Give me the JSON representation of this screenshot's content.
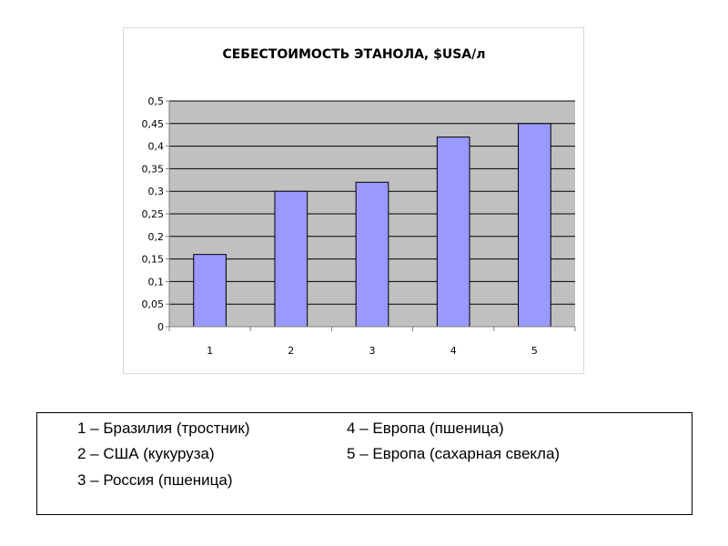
{
  "chart_data": {
    "type": "bar",
    "title": "СЕБЕСТОИМОСТЬ ЭТАНОЛА, $USA/л",
    "categories": [
      "1",
      "2",
      "3",
      "4",
      "5"
    ],
    "values": [
      0.16,
      0.3,
      0.32,
      0.42,
      0.45
    ],
    "ylim": [
      0,
      0.5
    ],
    "yticks": [
      "0",
      "0,05",
      "0,1",
      "0,15",
      "0,2",
      "0,25",
      "0,3",
      "0,35",
      "0,4",
      "0,45",
      "0,5"
    ],
    "grid": true,
    "colors": {
      "bar": "#9999ff",
      "bar_border": "#000000",
      "plot_bg": "#c0c0c0",
      "grid": "#000000"
    }
  },
  "legend": {
    "items": [
      "1 – Бразилия (тростник)",
      "2 – США (кукуруза)",
      "3 – Россия (пшеница)",
      "4 – Европа (пшеница)",
      "5 – Европа (сахарная свекла)"
    ]
  }
}
